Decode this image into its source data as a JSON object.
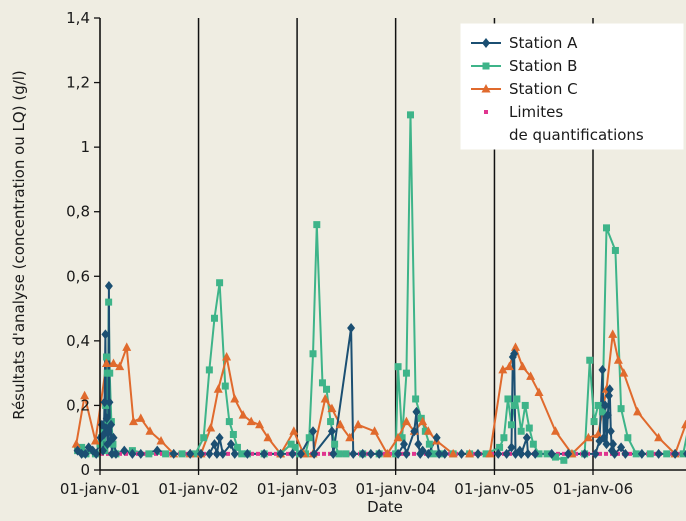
{
  "chart_data": {
    "type": "line",
    "title": "",
    "xlabel": "Date",
    "ylabel": "Résultats d'analyse (concentration ou LQ) (g/l)",
    "ylim": [
      0,
      1.4
    ],
    "y_ticks": [
      "0",
      "0,2",
      "0,4",
      "0,6",
      "0,8",
      "1",
      "1,2",
      "1,4"
    ],
    "xlim": [
      "2000-10-01",
      "2006-12-31"
    ],
    "x_ticks": [
      {
        "date": "2001-01-01",
        "label": "01-janv-01"
      },
      {
        "date": "2002-01-01",
        "label": "01-janv-02"
      },
      {
        "date": "2003-01-01",
        "label": "01-janv-03"
      },
      {
        "date": "2004-01-01",
        "label": "01-janv-04"
      },
      {
        "date": "2005-01-01",
        "label": "01-janv-05"
      },
      {
        "date": "2006-01-01",
        "label": "01-janv-06"
      }
    ],
    "grid": "vertical lines at each year",
    "legend_position": "top-right",
    "series": [
      {
        "name": "Station A",
        "color": "#1b4f72",
        "marker": "diamond",
        "points": [
          [
            "2000-10-10",
            0.06
          ],
          [
            "2000-10-25",
            0.05
          ],
          [
            "2000-11-08",
            0.05
          ],
          [
            "2000-11-20",
            0.07
          ],
          [
            "2000-12-05",
            0.06
          ],
          [
            "2000-12-18",
            0.05
          ],
          [
            "2001-01-03",
            0.1
          ],
          [
            "2001-01-08",
            0.14
          ],
          [
            "2001-01-12",
            0.06
          ],
          [
            "2001-01-15",
            0.11
          ],
          [
            "2001-01-18",
            0.21
          ],
          [
            "2001-01-21",
            0.42
          ],
          [
            "2001-01-23",
            0.13
          ],
          [
            "2001-01-26",
            0.16
          ],
          [
            "2001-01-29",
            0.08
          ],
          [
            "2001-02-01",
            0.12
          ],
          [
            "2001-02-03",
            0.57
          ],
          [
            "2001-02-05",
            0.21
          ],
          [
            "2001-02-08",
            0.09
          ],
          [
            "2001-02-11",
            0.14
          ],
          [
            "2001-02-14",
            0.05
          ],
          [
            "2001-02-20",
            0.1
          ],
          [
            "2001-03-01",
            0.05
          ],
          [
            "2001-04-01",
            0.06
          ],
          [
            "2001-05-01",
            0.05
          ],
          [
            "2001-06-01",
            0.05
          ],
          [
            "2001-08-01",
            0.06
          ],
          [
            "2001-10-01",
            0.05
          ],
          [
            "2001-12-01",
            0.05
          ],
          [
            "2002-01-10",
            0.05
          ],
          [
            "2002-02-10",
            0.05
          ],
          [
            "2002-03-01",
            0.08
          ],
          [
            "2002-03-10",
            0.05
          ],
          [
            "2002-03-20",
            0.1
          ],
          [
            "2002-04-01",
            0.05
          ],
          [
            "2002-05-01",
            0.08
          ],
          [
            "2002-05-15",
            0.05
          ],
          [
            "2002-07-01",
            0.05
          ],
          [
            "2002-09-01",
            0.05
          ],
          [
            "2002-11-01",
            0.05
          ],
          [
            "2002-12-15",
            0.05
          ],
          [
            "2003-01-15",
            0.05
          ],
          [
            "2003-03-01",
            0.12
          ],
          [
            "2003-03-05",
            0.05
          ],
          [
            "2003-05-10",
            0.12
          ],
          [
            "2003-05-15",
            0.05
          ],
          [
            "2003-07-20",
            0.44
          ],
          [
            "2003-07-28",
            0.05
          ],
          [
            "2003-09-01",
            0.05
          ],
          [
            "2003-10-01",
            0.05
          ],
          [
            "2003-11-01",
            0.05
          ],
          [
            "2004-01-10",
            0.05
          ],
          [
            "2004-02-01",
            0.08
          ],
          [
            "2004-02-10",
            0.05
          ],
          [
            "2004-03-10",
            0.12
          ],
          [
            "2004-03-18",
            0.18
          ],
          [
            "2004-03-25",
            0.08
          ],
          [
            "2004-04-01",
            0.05
          ],
          [
            "2004-04-10",
            0.06
          ],
          [
            "2004-05-01",
            0.05
          ],
          [
            "2004-06-01",
            0.1
          ],
          [
            "2004-06-10",
            0.05
          ],
          [
            "2004-07-01",
            0.05
          ],
          [
            "2004-09-01",
            0.05
          ],
          [
            "2004-11-01",
            0.05
          ],
          [
            "2005-01-15",
            0.05
          ],
          [
            "2005-02-15",
            0.05
          ],
          [
            "2005-03-05",
            0.07
          ],
          [
            "2005-03-10",
            0.35
          ],
          [
            "2005-03-15",
            0.36
          ],
          [
            "2005-03-20",
            0.05
          ],
          [
            "2005-04-05",
            0.06
          ],
          [
            "2005-04-10",
            0.05
          ],
          [
            "2005-05-01",
            0.1
          ],
          [
            "2005-05-05",
            0.05
          ],
          [
            "2005-06-01",
            0.05
          ],
          [
            "2005-08-01",
            0.05
          ],
          [
            "2005-10-01",
            0.05
          ],
          [
            "2005-12-01",
            0.05
          ],
          [
            "2006-01-10",
            0.05
          ],
          [
            "2006-01-25",
            0.09
          ],
          [
            "2006-02-05",
            0.31
          ],
          [
            "2006-02-10",
            0.1
          ],
          [
            "2006-02-15",
            0.2
          ],
          [
            "2006-02-20",
            0.08
          ],
          [
            "2006-02-25",
            0.17
          ],
          [
            "2006-03-01",
            0.23
          ],
          [
            "2006-03-04",
            0.25
          ],
          [
            "2006-03-08",
            0.12
          ],
          [
            "2006-03-12",
            0.06
          ],
          [
            "2006-03-16",
            0.08
          ],
          [
            "2006-03-22",
            0.05
          ],
          [
            "2006-04-15",
            0.07
          ],
          [
            "2006-05-01",
            0.05
          ],
          [
            "2006-07-01",
            0.05
          ],
          [
            "2006-09-01",
            0.05
          ],
          [
            "2006-11-01",
            0.05
          ],
          [
            "2006-12-15",
            0.05
          ]
        ]
      },
      {
        "name": "Station B",
        "color": "#3eb489",
        "marker": "square",
        "points": [
          [
            "2000-10-10",
            0.06
          ],
          [
            "2000-10-25",
            0.07
          ],
          [
            "2000-11-10",
            0.05
          ],
          [
            "2000-11-25",
            0.06
          ],
          [
            "2000-12-15",
            0.05
          ],
          [
            "2001-01-01",
            0.08
          ],
          [
            "2001-01-07",
            0.1
          ],
          [
            "2001-01-13",
            0.12
          ],
          [
            "2001-01-19",
            0.06
          ],
          [
            "2001-01-22",
            0.2
          ],
          [
            "2001-01-25",
            0.35
          ],
          [
            "2001-01-28",
            0.3
          ],
          [
            "2001-01-31",
            0.15
          ],
          [
            "2001-02-02",
            0.52
          ],
          [
            "2001-02-06",
            0.3
          ],
          [
            "2001-02-12",
            0.15
          ],
          [
            "2001-02-18",
            0.08
          ],
          [
            "2001-03-01",
            0.05
          ],
          [
            "2001-05-01",
            0.06
          ],
          [
            "2001-07-01",
            0.05
          ],
          [
            "2001-09-01",
            0.05
          ],
          [
            "2001-11-01",
            0.05
          ],
          [
            "2001-12-20",
            0.05
          ],
          [
            "2002-01-20",
            0.1
          ],
          [
            "2002-02-10",
            0.31
          ],
          [
            "2002-03-01",
            0.47
          ],
          [
            "2002-03-20",
            0.58
          ],
          [
            "2002-04-10",
            0.26
          ],
          [
            "2002-04-25",
            0.15
          ],
          [
            "2002-05-10",
            0.11
          ],
          [
            "2002-05-25",
            0.07
          ],
          [
            "2002-06-10",
            0.05
          ],
          [
            "2002-07-01",
            0.05
          ],
          [
            "2002-09-01",
            0.05
          ],
          [
            "2002-11-01",
            0.05
          ],
          [
            "2002-12-10",
            0.08
          ],
          [
            "2002-12-25",
            0.07
          ],
          [
            "2003-01-10",
            0.05
          ],
          [
            "2003-02-01",
            0.05
          ],
          [
            "2003-02-15",
            0.1
          ],
          [
            "2003-03-01",
            0.36
          ],
          [
            "2003-03-15",
            0.76
          ],
          [
            "2003-04-05",
            0.27
          ],
          [
            "2003-04-20",
            0.25
          ],
          [
            "2003-05-05",
            0.15
          ],
          [
            "2003-05-20",
            0.08
          ],
          [
            "2003-06-05",
            0.05
          ],
          [
            "2003-07-01",
            0.05
          ],
          [
            "2003-09-01",
            0.05
          ],
          [
            "2003-11-01",
            0.05
          ],
          [
            "2004-01-01",
            0.05
          ],
          [
            "2004-01-10",
            0.32
          ],
          [
            "2004-01-25",
            0.1
          ],
          [
            "2004-02-10",
            0.3
          ],
          [
            "2004-02-25",
            1.1
          ],
          [
            "2004-03-15",
            0.22
          ],
          [
            "2004-04-05",
            0.16
          ],
          [
            "2004-04-20",
            0.12
          ],
          [
            "2004-05-05",
            0.08
          ],
          [
            "2004-05-20",
            0.05
          ],
          [
            "2004-06-15",
            0.05
          ],
          [
            "2004-08-01",
            0.05
          ],
          [
            "2004-10-01",
            0.05
          ],
          [
            "2004-12-01",
            0.05
          ],
          [
            "2005-01-20",
            0.07
          ],
          [
            "2005-02-05",
            0.1
          ],
          [
            "2005-02-20",
            0.22
          ],
          [
            "2005-03-05",
            0.14
          ],
          [
            "2005-03-15",
            0.2
          ],
          [
            "2005-03-25",
            0.22
          ],
          [
            "2005-04-10",
            0.12
          ],
          [
            "2005-04-25",
            0.2
          ],
          [
            "2005-05-10",
            0.13
          ],
          [
            "2005-05-25",
            0.08
          ],
          [
            "2005-06-15",
            0.05
          ],
          [
            "2005-07-15",
            0.05
          ],
          [
            "2005-08-15",
            0.04
          ],
          [
            "2005-09-15",
            0.03
          ],
          [
            "2005-10-15",
            0.05
          ],
          [
            "2005-12-01",
            0.05
          ],
          [
            "2005-12-20",
            0.34
          ],
          [
            "2006-01-05",
            0.15
          ],
          [
            "2006-01-20",
            0.2
          ],
          [
            "2006-02-05",
            0.18
          ],
          [
            "2006-02-20",
            0.75
          ],
          [
            "2006-03-25",
            0.68
          ],
          [
            "2006-04-15",
            0.19
          ],
          [
            "2006-05-10",
            0.1
          ],
          [
            "2006-06-10",
            0.05
          ],
          [
            "2006-08-01",
            0.05
          ],
          [
            "2006-10-01",
            0.05
          ],
          [
            "2006-12-01",
            0.05
          ],
          [
            "2006-12-25",
            0.15
          ]
        ]
      },
      {
        "name": "Station C",
        "color": "#e06a2d",
        "marker": "triangle",
        "points": [
          [
            "2000-10-05",
            0.08
          ],
          [
            "2000-11-05",
            0.23
          ],
          [
            "2000-12-15",
            0.09
          ],
          [
            "2001-01-25",
            0.33
          ],
          [
            "2001-02-20",
            0.33
          ],
          [
            "2001-03-15",
            0.32
          ],
          [
            "2001-04-10",
            0.38
          ],
          [
            "2001-05-05",
            0.15
          ],
          [
            "2001-06-01",
            0.16
          ],
          [
            "2001-07-05",
            0.12
          ],
          [
            "2001-08-15",
            0.09
          ],
          [
            "2001-10-01",
            0.05
          ],
          [
            "2001-12-01",
            0.05
          ],
          [
            "2002-01-10",
            0.05
          ],
          [
            "2002-02-15",
            0.13
          ],
          [
            "2002-03-15",
            0.25
          ],
          [
            "2002-04-15",
            0.35
          ],
          [
            "2002-05-15",
            0.22
          ],
          [
            "2002-06-15",
            0.17
          ],
          [
            "2002-07-15",
            0.15
          ],
          [
            "2002-08-15",
            0.14
          ],
          [
            "2002-09-15",
            0.1
          ],
          [
            "2002-11-01",
            0.05
          ],
          [
            "2002-12-20",
            0.12
          ],
          [
            "2003-01-25",
            0.05
          ],
          [
            "2003-03-01",
            0.05
          ],
          [
            "2003-04-15",
            0.22
          ],
          [
            "2003-05-10",
            0.19
          ],
          [
            "2003-06-10",
            0.14
          ],
          [
            "2003-07-15",
            0.1
          ],
          [
            "2003-08-15",
            0.14
          ],
          [
            "2003-10-15",
            0.12
          ],
          [
            "2003-12-01",
            0.05
          ],
          [
            "2004-01-10",
            0.1
          ],
          [
            "2004-02-10",
            0.15
          ],
          [
            "2004-03-10",
            0.12
          ],
          [
            "2004-04-10",
            0.15
          ],
          [
            "2004-05-01",
            0.12
          ],
          [
            "2004-06-01",
            0.09
          ],
          [
            "2004-08-01",
            0.05
          ],
          [
            "2004-10-01",
            0.05
          ],
          [
            "2004-12-15",
            0.05
          ],
          [
            "2005-02-01",
            0.31
          ],
          [
            "2005-02-25",
            0.32
          ],
          [
            "2005-03-20",
            0.38
          ],
          [
            "2005-04-15",
            0.32
          ],
          [
            "2005-05-15",
            0.29
          ],
          [
            "2005-06-15",
            0.24
          ],
          [
            "2005-08-15",
            0.12
          ],
          [
            "2005-10-15",
            0.05
          ],
          [
            "2005-12-15",
            0.1
          ],
          [
            "2006-01-20",
            0.11
          ],
          [
            "2006-02-20",
            0.25
          ],
          [
            "2006-03-15",
            0.42
          ],
          [
            "2006-04-05",
            0.34
          ],
          [
            "2006-04-25",
            0.3
          ],
          [
            "2006-06-15",
            0.18
          ],
          [
            "2006-09-01",
            0.1
          ],
          [
            "2006-11-01",
            0.05
          ],
          [
            "2006-12-10",
            0.14
          ],
          [
            "2006-12-28",
            0.17
          ]
        ]
      },
      {
        "name": "Limites\nde quantifications",
        "color": "#e0358f",
        "marker": "dot",
        "line": false,
        "constant_value": 0.05,
        "start": "2000-10-01",
        "end": "2006-12-31"
      }
    ]
  }
}
